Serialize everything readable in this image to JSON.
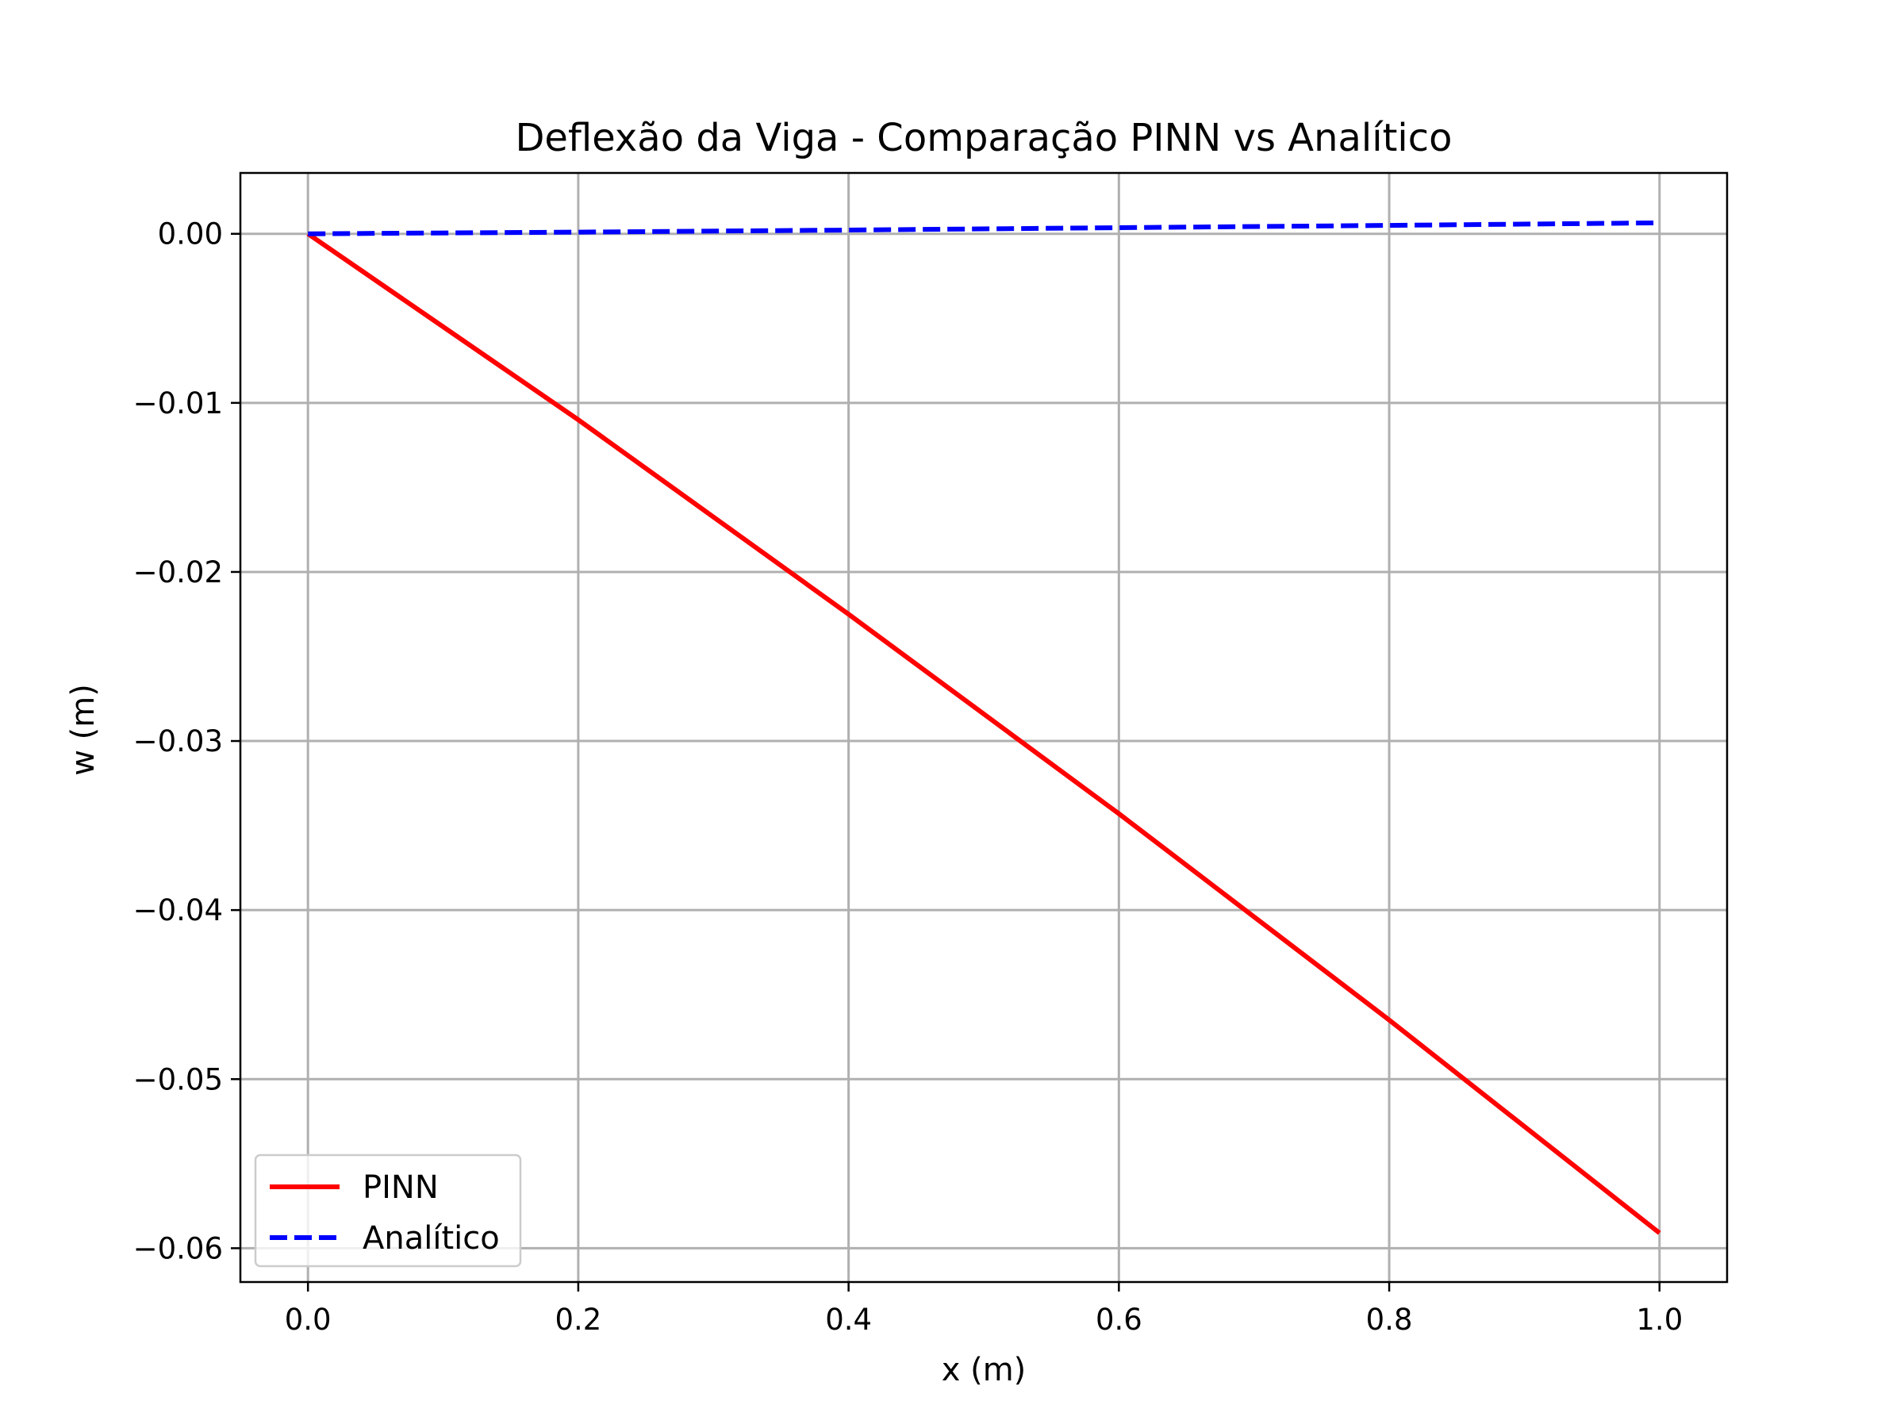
{
  "chart_data": {
    "type": "line",
    "title": "Deflexão da Viga - Comparação PINN vs Analítico",
    "xlabel": "x (m)",
    "ylabel": "w (m)",
    "xlim": [
      -0.05,
      1.05
    ],
    "ylim": [
      -0.062,
      0.0036
    ],
    "xticks": [
      0.0,
      0.2,
      0.4,
      0.6,
      0.8,
      1.0
    ],
    "xtick_labels": [
      "0.0",
      "0.2",
      "0.4",
      "0.6",
      "0.8",
      "1.0"
    ],
    "yticks": [
      0.0,
      -0.01,
      -0.02,
      -0.03,
      -0.04,
      -0.05,
      -0.06
    ],
    "ytick_labels": [
      "0.00",
      "−0.01",
      "−0.02",
      "−0.03",
      "−0.04",
      "−0.05",
      "−0.06"
    ],
    "grid": true,
    "legend_position": "lower-left",
    "series": [
      {
        "name": "PINN",
        "color": "#ff0000",
        "style": "solid",
        "x": [
          0.0,
          0.2,
          0.4,
          0.6,
          0.8,
          1.0
        ],
        "y": [
          0.0,
          -0.011,
          -0.0225,
          -0.0343,
          -0.0465,
          -0.0591
        ]
      },
      {
        "name": "Analítico",
        "color": "#0000ff",
        "style": "dashed",
        "x": [
          0.0,
          0.2,
          0.4,
          0.6,
          0.8,
          1.0
        ],
        "y": [
          0.0,
          0.0001,
          0.00022,
          0.00036,
          0.0005,
          0.00065
        ]
      }
    ]
  }
}
